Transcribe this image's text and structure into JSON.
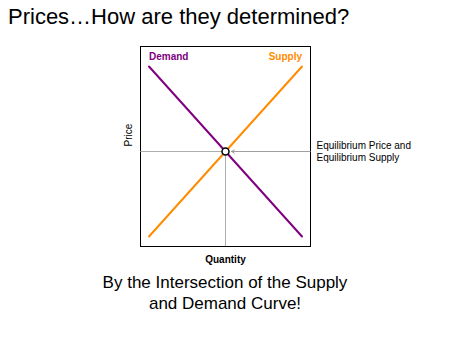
{
  "chart_data": {
    "type": "line",
    "title": "Prices…How are they determined?",
    "caption": [
      "By the Intersection of the Supply",
      "and Demand Curve!"
    ],
    "x_label": "Quantity",
    "y_label": "Price",
    "xlim": [
      0,
      1
    ],
    "ylim": [
      0,
      1
    ],
    "xticks": [],
    "yticks": [],
    "tick_labels": false,
    "series": [
      {
        "name": "Supply",
        "color": "#FF8C00",
        "x": [
          0.05,
          0.95
        ],
        "values": [
          0.05,
          0.9
        ]
      },
      {
        "name": "Demand",
        "color": "#800080",
        "x": [
          0.05,
          0.95
        ],
        "values": [
          0.9,
          0.05
        ]
      }
    ],
    "equilibrium": {
      "x": 0.5,
      "y": 0.475,
      "label": "Equilibrium Price and\nEquilibrium Supply"
    }
  }
}
